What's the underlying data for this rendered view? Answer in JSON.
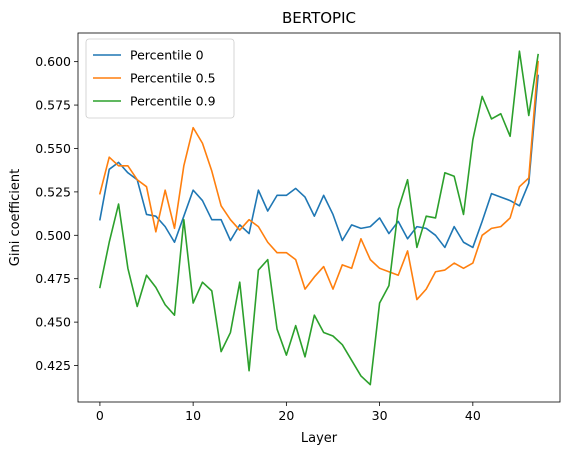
{
  "chart_data": {
    "type": "line",
    "title": "BERTOPIC",
    "xlabel": "Layer",
    "ylabel": "Gini coefficient",
    "xlim": [
      -2.35,
      49.35
    ],
    "ylim": [
      0.404,
      0.6165
    ],
    "xticks": [
      0,
      10,
      20,
      30,
      40
    ],
    "yticks": [
      0.425,
      0.45,
      0.475,
      0.5,
      0.525,
      0.55,
      0.575,
      0.6
    ],
    "ytick_labels": [
      "0.425",
      "0.450",
      "0.475",
      "0.500",
      "0.525",
      "0.550",
      "0.575",
      "0.600"
    ],
    "grid": false,
    "legend_position": "top-left",
    "x": [
      0,
      1,
      2,
      3,
      4,
      5,
      6,
      7,
      8,
      9,
      10,
      11,
      12,
      13,
      14,
      15,
      16,
      17,
      18,
      19,
      20,
      21,
      22,
      23,
      24,
      25,
      26,
      27,
      28,
      29,
      30,
      31,
      32,
      33,
      34,
      35,
      36,
      37,
      38,
      39,
      40,
      41,
      42,
      43,
      44,
      45,
      46,
      47
    ],
    "series": [
      {
        "name": "Percentile 0",
        "color": "#1f77b4",
        "values": [
          0.509,
          0.538,
          0.542,
          0.536,
          0.532,
          0.512,
          0.511,
          0.505,
          0.496,
          0.511,
          0.526,
          0.52,
          0.509,
          0.509,
          0.497,
          0.506,
          0.501,
          0.526,
          0.514,
          0.523,
          0.523,
          0.527,
          0.522,
          0.511,
          0.523,
          0.512,
          0.497,
          0.506,
          0.504,
          0.505,
          0.51,
          0.501,
          0.508,
          0.498,
          0.505,
          0.504,
          0.5,
          0.493,
          0.505,
          0.496,
          0.493,
          0.508,
          0.524,
          0.522,
          0.52,
          0.517,
          0.53,
          0.592
        ]
      },
      {
        "name": "Percentile 0.5",
        "color": "#ff7f0e",
        "values": [
          0.524,
          0.545,
          0.54,
          0.54,
          0.532,
          0.528,
          0.502,
          0.526,
          0.504,
          0.54,
          0.562,
          0.553,
          0.537,
          0.517,
          0.509,
          0.503,
          0.509,
          0.505,
          0.496,
          0.49,
          0.49,
          0.486,
          0.469,
          0.476,
          0.482,
          0.469,
          0.483,
          0.481,
          0.498,
          0.486,
          0.481,
          0.479,
          0.477,
          0.491,
          0.463,
          0.469,
          0.479,
          0.48,
          0.484,
          0.481,
          0.484,
          0.5,
          0.504,
          0.505,
          0.51,
          0.528,
          0.533,
          0.6
        ]
      },
      {
        "name": "Percentile 0.9",
        "color": "#2ca02c",
        "values": [
          0.47,
          0.496,
          0.518,
          0.481,
          0.459,
          0.477,
          0.47,
          0.46,
          0.454,
          0.509,
          0.461,
          0.473,
          0.468,
          0.433,
          0.444,
          0.473,
          0.422,
          0.48,
          0.486,
          0.446,
          0.431,
          0.448,
          0.43,
          0.454,
          0.444,
          0.442,
          0.437,
          0.428,
          0.419,
          0.414,
          0.461,
          0.471,
          0.515,
          0.532,
          0.493,
          0.511,
          0.51,
          0.536,
          0.534,
          0.512,
          0.555,
          0.58,
          0.567,
          0.57,
          0.557,
          0.606,
          0.569,
          0.604
        ]
      }
    ]
  }
}
